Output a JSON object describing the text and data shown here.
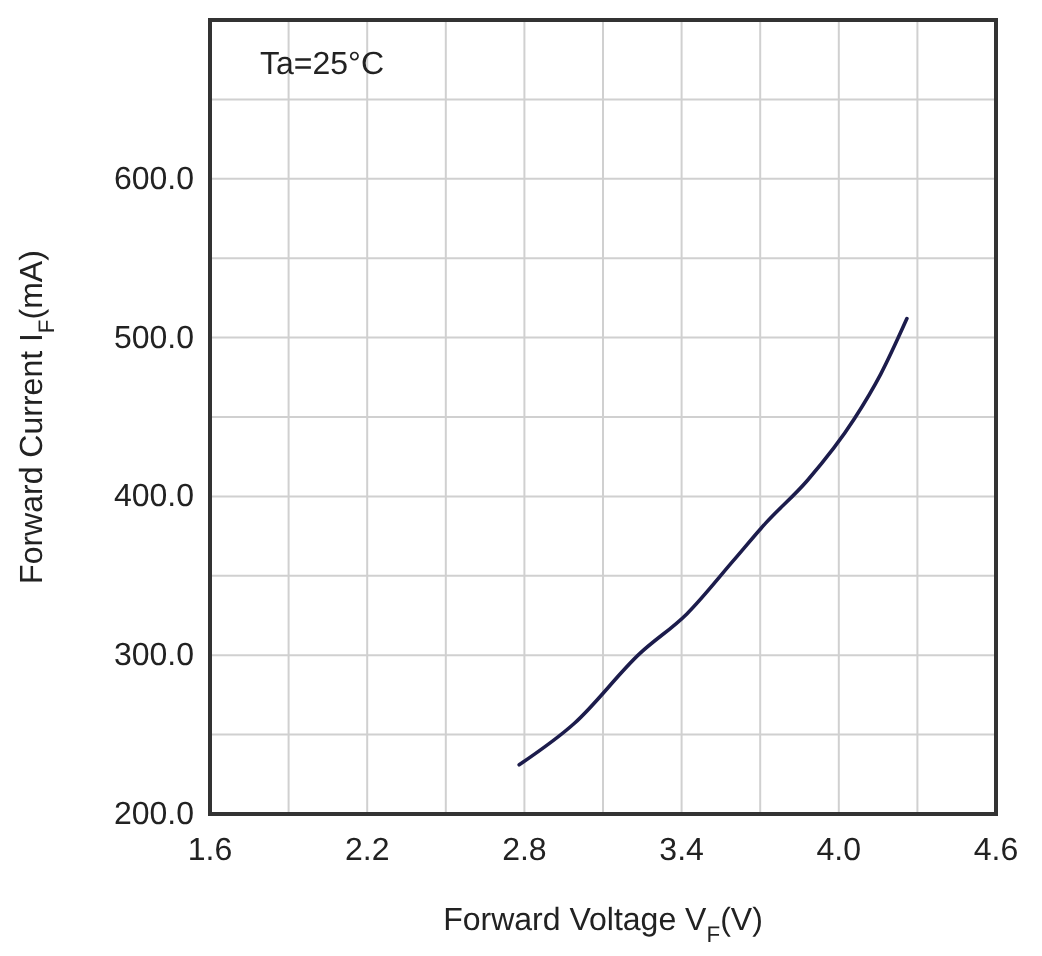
{
  "chart_data": {
    "type": "line",
    "xlabel": "Forward Voltage V$_{F}$(V)",
    "ylabel": "Forward Current I$_{F}$(mA)",
    "annotations": [
      "Ta=25°C"
    ],
    "x": [
      2.78,
      2.99,
      3.24,
      3.42,
      3.6,
      3.72,
      3.88,
      4.06,
      4.16,
      4.26
    ],
    "series": [
      {
        "color": "#1c1c4c",
        "values": [
          231,
          257,
          301,
          326,
          360,
          383,
          410,
          449,
          477,
          512
        ]
      }
    ],
    "xlim": [
      1.6,
      4.6
    ],
    "xticks": [
      1.6,
      {
        "value": 1.9,
        "label": null
      },
      2.2,
      {
        "value": 2.5,
        "label": null
      },
      2.8,
      {
        "value": 3.1,
        "label": null
      },
      3.4,
      {
        "value": 3.7,
        "label": null
      },
      {
        "value": 4.0,
        "label": "4.0"
      },
      {
        "value": 4.3,
        "label": null
      },
      4.6
    ],
    "ylim": [
      200,
      700
    ],
    "yticks": [
      {
        "value": 200,
        "label": "200.0"
      },
      {
        "value": 250,
        "label": null
      },
      {
        "value": 300,
        "label": "300.0"
      },
      {
        "value": 350,
        "label": null
      },
      {
        "value": 400,
        "label": "400.0"
      },
      {
        "value": 450,
        "label": null
      },
      {
        "value": 500,
        "label": "500.0"
      },
      {
        "value": 550,
        "label": null
      },
      {
        "value": 600,
        "label": "600.0"
      },
      {
        "value": 650,
        "label": null
      },
      {
        "value": 700,
        "label": null
      }
    ],
    "grid": true,
    "marker": "none",
    "line_style": "solid"
  }
}
